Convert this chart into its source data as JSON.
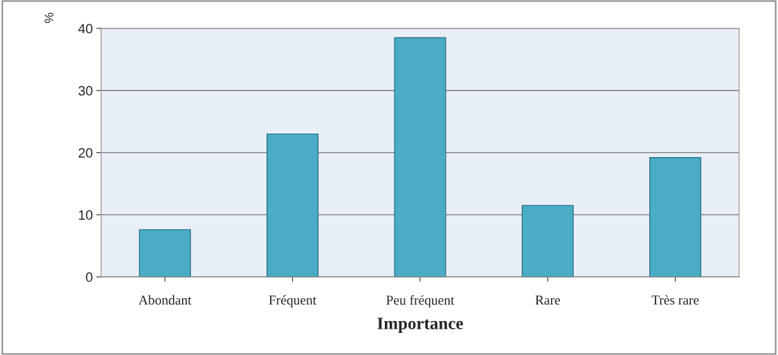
{
  "chart_data": {
    "type": "bar",
    "xlabel": "Importance",
    "ylabel": "%",
    "categories": [
      "Abondant",
      "Fréquent",
      "Peu fréquent",
      "Rare",
      "Très rare"
    ],
    "values": [
      7.6,
      23,
      38.5,
      11.5,
      19.2
    ],
    "color": "#4bacc6",
    "ylim": [
      0,
      40
    ],
    "yticks": [
      0,
      10,
      20,
      30,
      40
    ],
    "grid": "y"
  }
}
